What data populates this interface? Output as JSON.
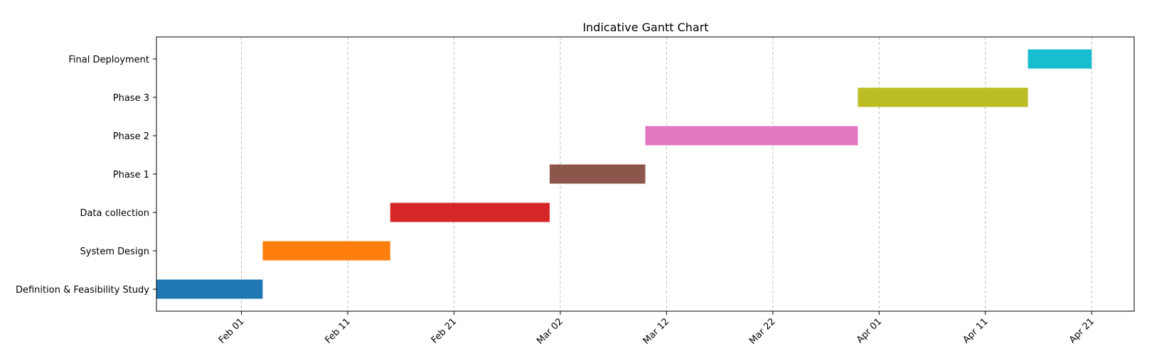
{
  "chart_data": {
    "type": "gantt",
    "title": "Indicative Gantt Chart",
    "xlabel": "",
    "ylabel": "",
    "xlim": [
      "2024-01-24",
      "2024-04-25"
    ],
    "grid": {
      "x": true,
      "y": false,
      "style": "dashed"
    },
    "x_ticks": [
      {
        "date": "2024-02-01",
        "label": "Feb 01"
      },
      {
        "date": "2024-02-11",
        "label": "Feb 11"
      },
      {
        "date": "2024-02-21",
        "label": "Feb 21"
      },
      {
        "date": "2024-03-02",
        "label": "Mar 02"
      },
      {
        "date": "2024-03-12",
        "label": "Mar 12"
      },
      {
        "date": "2024-03-22",
        "label": "Mar 22"
      },
      {
        "date": "2024-04-01",
        "label": "Apr 01"
      },
      {
        "date": "2024-04-11",
        "label": "Apr 11"
      },
      {
        "date": "2024-04-21",
        "label": "Apr 21"
      }
    ],
    "tasks": [
      {
        "name": "Definition & Feasibility Study",
        "start": "2024-01-24",
        "end": "2024-02-03",
        "color": "#1f77b4"
      },
      {
        "name": "System Design",
        "start": "2024-02-03",
        "end": "2024-02-15",
        "color": "#ff7f0e"
      },
      {
        "name": "Data collection",
        "start": "2024-02-15",
        "end": "2024-03-01",
        "color": "#d62728"
      },
      {
        "name": "Phase 1",
        "start": "2024-03-01",
        "end": "2024-03-10",
        "color": "#8c564b"
      },
      {
        "name": "Phase 2",
        "start": "2024-03-10",
        "end": "2024-03-30",
        "color": "#e377c2"
      },
      {
        "name": "Phase 3",
        "start": "2024-03-30",
        "end": "2024-04-15",
        "color": "#bcbd22"
      },
      {
        "name": "Final Deployment",
        "start": "2024-04-15",
        "end": "2024-04-21",
        "color": "#17becf"
      }
    ]
  }
}
